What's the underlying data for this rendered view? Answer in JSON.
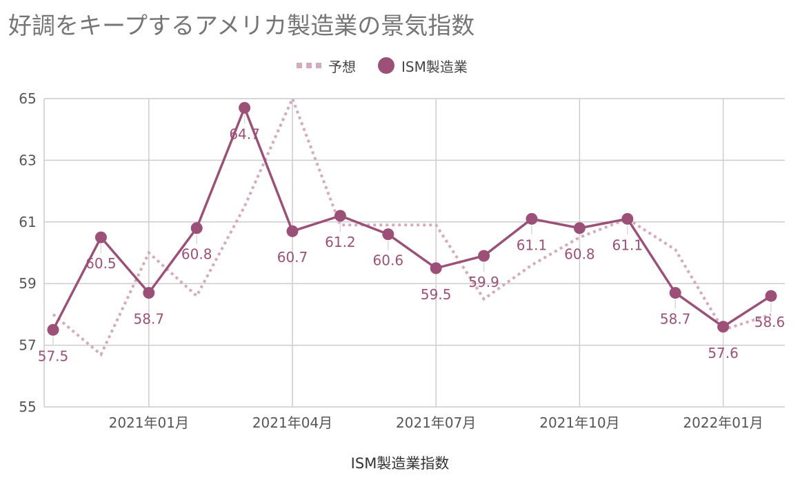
{
  "title": "好調をキープするアメリカ製造業の景気指数",
  "legend": {
    "forecast_label": "予想",
    "ism_label": "ISM製造業"
  },
  "colors": {
    "ism": "#9c5078",
    "forecast": "#d6aabd",
    "grid": "#cccccc",
    "title": "#757575"
  },
  "chart_data": {
    "type": "line",
    "title": "好調をキープするアメリカ製造業の景気指数",
    "xlabel": "ISM製造業指数",
    "ylabel": "",
    "ylim": [
      55,
      65
    ],
    "yticks": [
      55,
      57,
      59,
      61,
      63,
      65
    ],
    "x": [
      "2020-11",
      "2020-12",
      "2021-01",
      "2021-02",
      "2021-03",
      "2021-04",
      "2021-05",
      "2021-06",
      "2021-07",
      "2021-08",
      "2021-09",
      "2021-10",
      "2021-11",
      "2021-12",
      "2022-01",
      "2022-02"
    ],
    "xticks": [
      {
        "x": "2021-01",
        "label": "2021年01月"
      },
      {
        "x": "2021-04",
        "label": "2021年04月"
      },
      {
        "x": "2021-07",
        "label": "2021年07月"
      },
      {
        "x": "2021-10",
        "label": "2021年10月"
      },
      {
        "x": "2022-01",
        "label": "2022年01月"
      }
    ],
    "series": [
      {
        "name": "予想",
        "style": "dotted",
        "values": [
          58.0,
          56.7,
          60.0,
          58.6,
          61.5,
          65.0,
          60.9,
          60.9,
          60.9,
          58.5,
          59.6,
          60.5,
          61.1,
          60.1,
          57.5,
          58.0
        ]
      },
      {
        "name": "ISM製造業",
        "style": "solid-markers",
        "values": [
          57.5,
          60.5,
          58.7,
          60.8,
          64.7,
          60.7,
          61.2,
          60.6,
          59.5,
          59.9,
          61.1,
          60.8,
          61.1,
          58.7,
          57.6,
          58.6
        ],
        "labels": [
          "57.5",
          "60.5",
          "58.7",
          "60.8",
          "64.7",
          "60.7",
          "61.2",
          "60.6",
          "59.5",
          "59.9",
          "61.1",
          "60.8",
          "61.1",
          "58.7",
          "57.6",
          "58.6"
        ]
      }
    ],
    "grid": true,
    "legend_position": "top"
  }
}
